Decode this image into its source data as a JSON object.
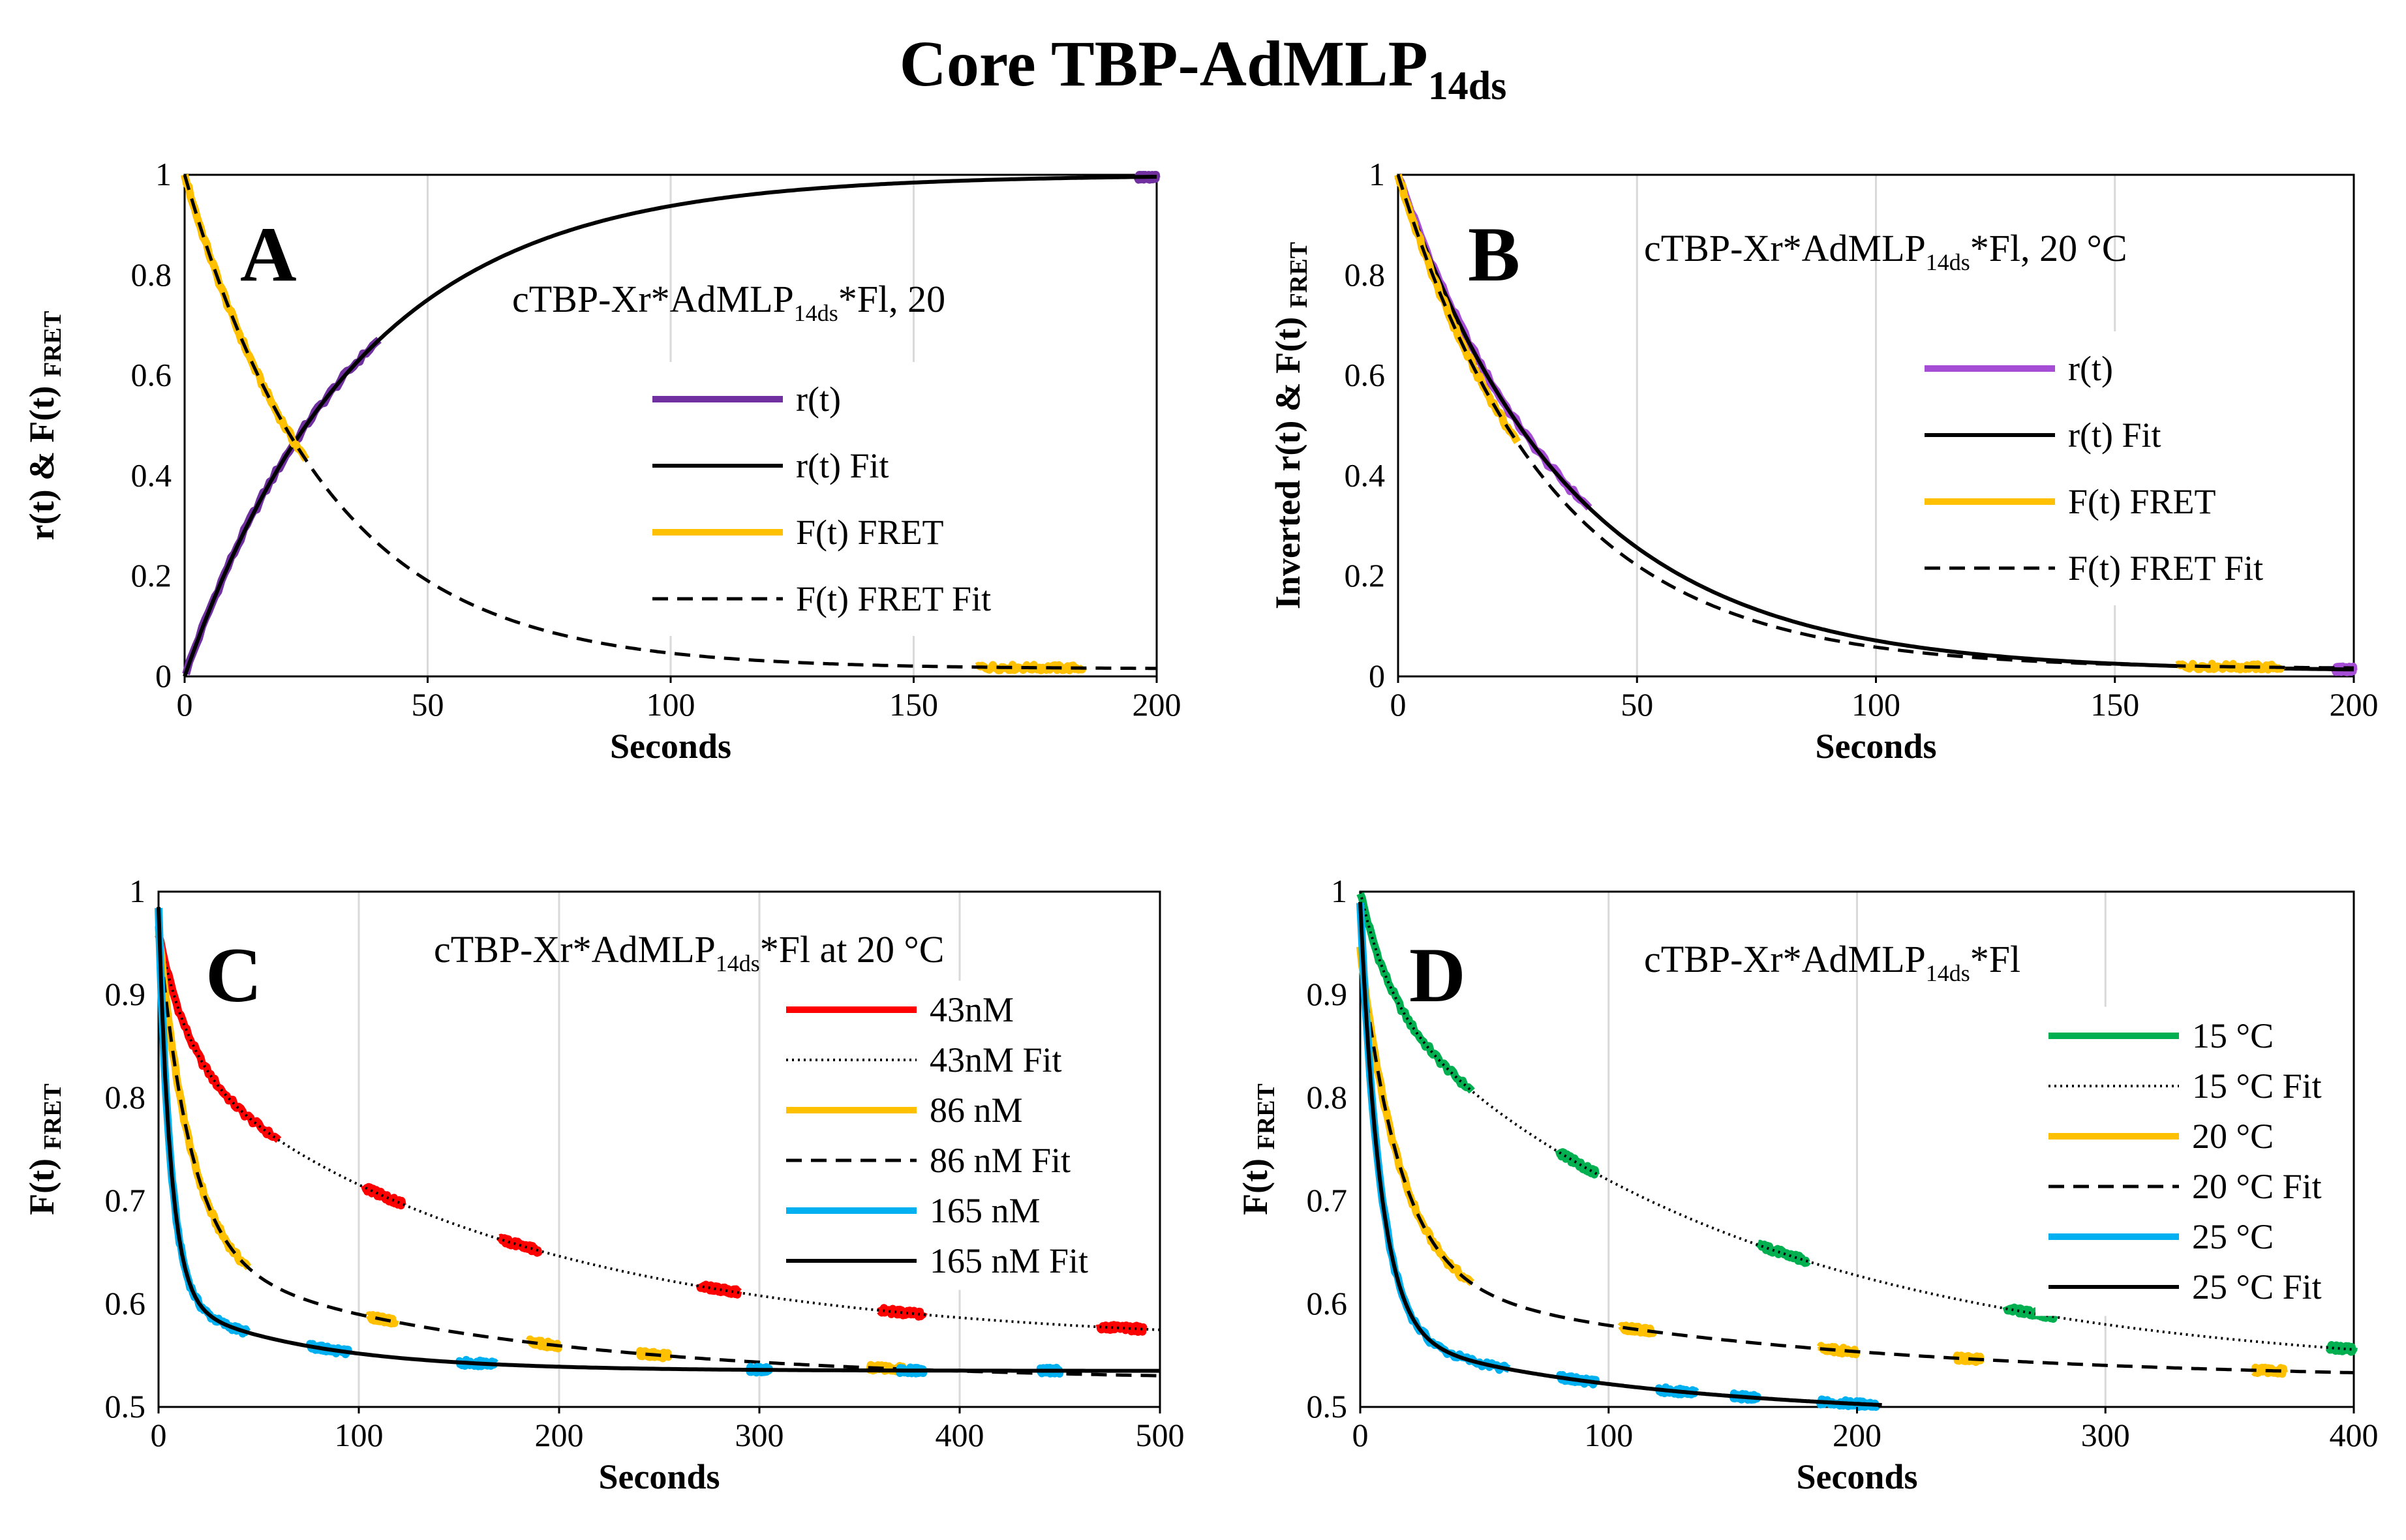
{
  "figure_title": {
    "main": "Core TBP-AdMLP",
    "subscript": "14ds"
  },
  "chart_data": [
    {
      "id": "A",
      "type": "line",
      "panel_label": "A",
      "annotation": {
        "pre": "cTBP-Xr*AdMLP",
        "sub": "14ds",
        "post": "*Fl,  20"
      },
      "xlabel": "Seconds",
      "ylabel": "r(t) & F(t) FRET",
      "xlim": [
        0,
        200
      ],
      "ylim": [
        0,
        1
      ],
      "xticks": [
        0,
        50,
        100,
        150,
        200
      ],
      "yticks": [
        0,
        0.2,
        0.4,
        0.6,
        0.8,
        1
      ],
      "xtick_labels": [
        "0",
        "50",
        "100",
        "150",
        "200"
      ],
      "ytick_labels": [
        "0",
        "0.2",
        "0.4",
        "0.6",
        "0.8",
        "1"
      ],
      "legend": [
        "r(t)",
        "r(t) Fit",
        "F(t) FRET",
        "F(t) FRET Fit"
      ],
      "series": [
        {
          "name": "r(t)",
          "color": "#7030a0",
          "style": "data",
          "segments": [
            [
              0.3,
              40
            ],
            [
              196,
              200
            ]
          ],
          "func": {
            "kind": "rise",
            "tau": 36
          }
        },
        {
          "name": "r(t) Fit",
          "color": "#000000",
          "style": "solid",
          "range": [
            0,
            200
          ],
          "func": {
            "kind": "rise",
            "tau": 36
          }
        },
        {
          "name": "F(t) FRET",
          "color": "#ffc000",
          "style": "data",
          "segments": [
            [
              0,
              25
            ],
            [
              163,
              185
            ]
          ],
          "func": {
            "kind": "decay",
            "y0": 1,
            "tau": 29,
            "c": 0.015
          }
        },
        {
          "name": "F(t) FRET Fit",
          "color": "#000000",
          "style": "dash",
          "range": [
            0,
            200
          ],
          "func": {
            "kind": "decay",
            "y0": 1,
            "tau": 29,
            "c": 0.015
          }
        }
      ]
    },
    {
      "id": "B",
      "type": "line",
      "panel_label": "B",
      "annotation": {
        "pre": "cTBP-Xr*AdMLP",
        "sub": "14ds",
        "post": "*Fl, 20 °C"
      },
      "xlabel": "Seconds",
      "ylabel": "Inverted r(t) & F(t) FRET",
      "xlim": [
        0,
        200
      ],
      "ylim": [
        0,
        1
      ],
      "xticks": [
        0,
        50,
        100,
        150,
        200
      ],
      "yticks": [
        0,
        0.2,
        0.4,
        0.6,
        0.8,
        1
      ],
      "xtick_labels": [
        "0",
        "50",
        "100",
        "150",
        "200"
      ],
      "ytick_labels": [
        "0",
        "0.2",
        "0.4",
        "0.6",
        "0.8",
        "1"
      ],
      "legend": [
        "r(t)",
        "r(t) Fit",
        "F(t) FRET",
        "F(t) FRET Fit"
      ],
      "series": [
        {
          "name": "r(t)",
          "color": "#a64dd6",
          "style": "data",
          "segments": [
            [
              0,
              40
            ],
            [
              196,
              200
            ]
          ],
          "func": {
            "kind": "decay",
            "y0": 1,
            "tau": 36,
            "c": 0.01
          }
        },
        {
          "name": "r(t) Fit",
          "color": "#000000",
          "style": "solid",
          "range": [
            0,
            200
          ],
          "func": {
            "kind": "decay",
            "y0": 1,
            "tau": 36,
            "c": 0.01
          }
        },
        {
          "name": "F(t) FRET",
          "color": "#ffc000",
          "style": "data",
          "segments": [
            [
              0,
              25
            ],
            [
              163,
              185
            ]
          ],
          "func": {
            "kind": "decay",
            "y0": 1,
            "tau": 32,
            "c": 0.015
          }
        },
        {
          "name": "F(t) FRET Fit",
          "color": "#000000",
          "style": "dash",
          "range": [
            0,
            200
          ],
          "func": {
            "kind": "decay",
            "y0": 1,
            "tau": 32,
            "c": 0.015
          }
        }
      ]
    },
    {
      "id": "C",
      "type": "line",
      "panel_label": "C",
      "annotation": {
        "pre": "cTBP-Xr*AdMLP",
        "sub": "14ds",
        "post": "*Fl at 20 °C"
      },
      "xlabel": "Seconds",
      "ylabel": "F(t) FRET",
      "xlim": [
        0,
        500
      ],
      "ylim": [
        0.5,
        1
      ],
      "xticks": [
        0,
        100,
        200,
        300,
        400,
        500
      ],
      "yticks": [
        0.5,
        0.6,
        0.7,
        0.8,
        0.9,
        1
      ],
      "xtick_labels": [
        "0",
        "100",
        "200",
        "300",
        "400",
        "500"
      ],
      "ytick_labels": [
        "0.5",
        "0.6",
        "0.7",
        "0.8",
        "0.9",
        "1"
      ],
      "legend": [
        "43nM",
        "43nM Fit",
        "86 nM",
        "86 nM Fit",
        "165 nM",
        "165 nM Fit"
      ],
      "series": [
        {
          "name": "43nM",
          "color": "#ff0000",
          "style": "data",
          "segments": [
            [
              0,
              60
            ],
            [
              103,
              122
            ],
            [
              170,
              190
            ],
            [
              270,
              290
            ],
            [
              360,
              382
            ],
            [
              470,
              492
            ]
          ],
          "func": {
            "kind": "biexp",
            "a1": 0.12,
            "t1": 15,
            "a2": 0.28,
            "t2": 170,
            "c": 0.56
          }
        },
        {
          "name": "43nM Fit",
          "color": "#000000",
          "style": "dot",
          "range": [
            0,
            500
          ],
          "func": {
            "kind": "biexp",
            "a1": 0.12,
            "t1": 15,
            "a2": 0.28,
            "t2": 170,
            "c": 0.56
          }
        },
        {
          "name": "86 nM",
          "color": "#ffc000",
          "style": "data",
          "segments": [
            [
              0,
              45
            ],
            [
              105,
              118
            ],
            [
              185,
              200
            ],
            [
              240,
              255
            ],
            [
              355,
              372
            ]
          ],
          "func": {
            "kind": "biexp",
            "a1": 0.32,
            "t1": 16,
            "a2": 0.12,
            "t2": 160,
            "c": 0.525
          }
        },
        {
          "name": "86 nM Fit",
          "color": "#000000",
          "style": "dash",
          "range": [
            0,
            500
          ],
          "func": {
            "kind": "biexp",
            "a1": 0.32,
            "t1": 16,
            "a2": 0.12,
            "t2": 160,
            "c": 0.525
          }
        },
        {
          "name": "165 nM",
          "color": "#00b0f0",
          "style": "data",
          "segments": [
            [
              0,
              45
            ],
            [
              75,
              95
            ],
            [
              150,
              168
            ],
            [
              295,
              305
            ],
            [
              370,
              382
            ],
            [
              440,
              450
            ]
          ],
          "func": {
            "kind": "biexp",
            "a1": 0.38,
            "t1": 6,
            "a2": 0.07,
            "t2": 70,
            "c": 0.535
          }
        },
        {
          "name": "165 nM Fit",
          "color": "#000000",
          "style": "solid",
          "range": [
            0,
            500
          ],
          "func": {
            "kind": "biexp",
            "a1": 0.38,
            "t1": 6,
            "a2": 0.07,
            "t2": 70,
            "c": 0.535
          }
        }
      ]
    },
    {
      "id": "D",
      "type": "line",
      "panel_label": "D",
      "annotation": {
        "pre": "cTBP-Xr*AdMLP",
        "sub": "14ds",
        "post": "*Fl"
      },
      "xlabel": "Seconds",
      "ylabel": "F(t) FRET",
      "xlim": [
        0,
        400
      ],
      "ylim": [
        0.5,
        1
      ],
      "xticks": [
        0,
        100,
        200,
        300,
        400
      ],
      "yticks": [
        0.5,
        0.6,
        0.7,
        0.8,
        0.9,
        1
      ],
      "xtick_labels": [
        "0",
        "100",
        "200",
        "300",
        "400"
      ],
      "ytick_labels": [
        "0.5",
        "0.6",
        "0.7",
        "0.8",
        "0.9",
        "1"
      ],
      "legend": [
        "15 °C",
        "15 °C Fit",
        "20 °C",
        "20 °C Fit",
        "25 °C",
        "25 °C Fit"
      ],
      "series": [
        {
          "name": "15 °C",
          "color": "#00b050",
          "style": "data",
          "segments": [
            [
              0,
              45
            ],
            [
              80,
              95
            ],
            [
              160,
              180
            ],
            [
              260,
              280
            ],
            [
              390,
              400
            ]
          ],
          "func": {
            "kind": "biexp",
            "a1": 0.1,
            "t1": 12,
            "a2": 0.37,
            "t2": 150,
            "c": 0.53
          }
        },
        {
          "name": "15 °C Fit",
          "color": "#000000",
          "style": "dot",
          "range": [
            0,
            400
          ],
          "func": {
            "kind": "biexp",
            "a1": 0.1,
            "t1": 12,
            "a2": 0.37,
            "t2": 150,
            "c": 0.53
          }
        },
        {
          "name": "20 °C",
          "color": "#ffc000",
          "style": "data",
          "segments": [
            [
              0,
              45
            ],
            [
              105,
              118
            ],
            [
              185,
              200
            ],
            [
              240,
              250
            ],
            [
              360,
              372
            ]
          ],
          "func": {
            "kind": "biexp",
            "a1": 0.32,
            "t1": 16,
            "a2": 0.1,
            "t2": 160,
            "c": 0.525
          }
        },
        {
          "name": "20 °C Fit",
          "color": "#000000",
          "style": "dash",
          "range": [
            0,
            400
          ],
          "func": {
            "kind": "biexp",
            "a1": 0.32,
            "t1": 16,
            "a2": 0.1,
            "t2": 160,
            "c": 0.525
          }
        },
        {
          "name": "25 °C",
          "color": "#00b0f0",
          "style": "data",
          "segments": [
            [
              0,
              60
            ],
            [
              80,
              95
            ],
            [
              120,
              135
            ],
            [
              150,
              160
            ],
            [
              185,
              208
            ]
          ],
          "func": {
            "kind": "biexp",
            "a1": 0.42,
            "t1": 8,
            "a2": 0.08,
            "t2": 110,
            "c": 0.49
          }
        },
        {
          "name": "25 °C Fit",
          "color": "#000000",
          "style": "solid",
          "range": [
            0,
            210
          ],
          "func": {
            "kind": "biexp",
            "a1": 0.42,
            "t1": 8,
            "a2": 0.08,
            "t2": 110,
            "c": 0.49
          }
        }
      ]
    }
  ]
}
